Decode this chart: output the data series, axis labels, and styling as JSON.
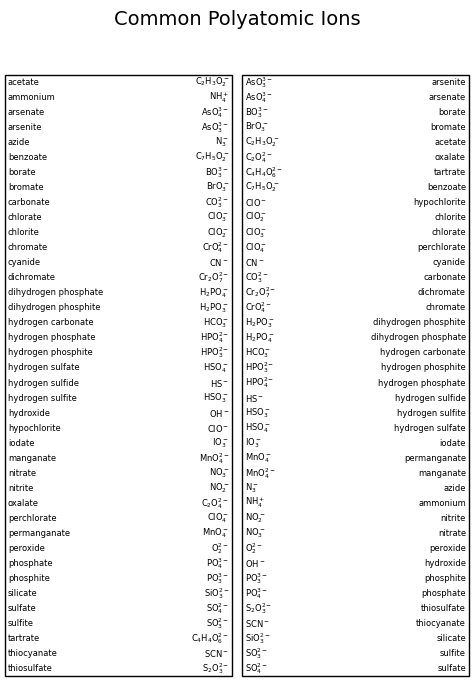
{
  "title": "Common Polyatomic Ions",
  "left_column": [
    [
      "acetate",
      "$\\mathregular{C_2H_3O_2^-}$"
    ],
    [
      "ammonium",
      "$\\mathregular{NH_4^+}$"
    ],
    [
      "arsenate",
      "$\\mathregular{AsO_4^{3-}}$"
    ],
    [
      "arsenite",
      "$\\mathregular{AsO_3^{3-}}$"
    ],
    [
      "azide",
      "$\\mathregular{N_3^-}$"
    ],
    [
      "benzoate",
      "$\\mathregular{C_7H_5O_2^-}$"
    ],
    [
      "borate",
      "$\\mathregular{BO_3^{3-}}$"
    ],
    [
      "bromate",
      "$\\mathregular{BrO_3^-}$"
    ],
    [
      "carbonate",
      "$\\mathregular{CO_3^{2-}}$"
    ],
    [
      "chlorate",
      "$\\mathregular{ClO_3^-}$"
    ],
    [
      "chlorite",
      "$\\mathregular{ClO_2^-}$"
    ],
    [
      "chromate",
      "$\\mathregular{CrO_4^{2-}}$"
    ],
    [
      "cyanide",
      "$\\mathregular{CN^-}$"
    ],
    [
      "dichromate",
      "$\\mathregular{Cr_2O_7^{2-}}$"
    ],
    [
      "dihydrogen phosphate",
      "$\\mathregular{H_2PO_4^-}$"
    ],
    [
      "dihydrogen phosphite",
      "$\\mathregular{H_2PO_3^-}$"
    ],
    [
      "hydrogen carbonate",
      "$\\mathregular{HCO_3^-}$"
    ],
    [
      "hydrogen phosphate",
      "$\\mathregular{HPO_4^{2-}}$"
    ],
    [
      "hydrogen phosphite",
      "$\\mathregular{HPO_3^{2-}}$"
    ],
    [
      "hydrogen sulfate",
      "$\\mathregular{HSO_4^-}$"
    ],
    [
      "hydrogen sulfide",
      "$\\mathregular{HS^-}$"
    ],
    [
      "hydrogen sulfite",
      "$\\mathregular{HSO_3^-}$"
    ],
    [
      "hydroxide",
      "$\\mathregular{OH^-}$"
    ],
    [
      "hypochlorite",
      "$\\mathregular{ClO^-}$"
    ],
    [
      "iodate",
      "$\\mathregular{IO_3^-}$"
    ],
    [
      "manganate",
      "$\\mathregular{MnO_4^{2-}}$"
    ],
    [
      "nitrate",
      "$\\mathregular{NO_3^-}$"
    ],
    [
      "nitrite",
      "$\\mathregular{NO_2^-}$"
    ],
    [
      "oxalate",
      "$\\mathregular{C_2O_4^{2-}}$"
    ],
    [
      "perchlorate",
      "$\\mathregular{ClO_4^-}$"
    ],
    [
      "permanganate",
      "$\\mathregular{MnO_4^-}$"
    ],
    [
      "peroxide",
      "$\\mathregular{O_2^{2-}}$"
    ],
    [
      "phosphate",
      "$\\mathregular{PO_4^{3-}}$"
    ],
    [
      "phosphite",
      "$\\mathregular{PO_3^{3-}}$"
    ],
    [
      "silicate",
      "$\\mathregular{SiO_3^{2-}}$"
    ],
    [
      "sulfate",
      "$\\mathregular{SO_4^{2-}}$"
    ],
    [
      "sulfite",
      "$\\mathregular{SO_3^{2-}}$"
    ],
    [
      "tartrate",
      "$\\mathregular{C_4H_4O_6^{2-}}$"
    ],
    [
      "thiocyanate",
      "$\\mathregular{SCN^-}$"
    ],
    [
      "thiosulfate",
      "$\\mathregular{S_2O_3^{2-}}$"
    ]
  ],
  "right_column": [
    [
      "$\\mathregular{AsO_3^{3-}}$",
      "arsenite"
    ],
    [
      "$\\mathregular{AsO_4^{3-}}$",
      "arsenate"
    ],
    [
      "$\\mathregular{BO_3^{3-}}$",
      "borate"
    ],
    [
      "$\\mathregular{BrO_3^-}$",
      "bromate"
    ],
    [
      "$\\mathregular{C_2H_3O_2^-}$",
      "acetate"
    ],
    [
      "$\\mathregular{C_2O_4^{2-}}$",
      "oxalate"
    ],
    [
      "$\\mathregular{C_4H_4O_6^{2-}}$",
      "tartrate"
    ],
    [
      "$\\mathregular{C_7H_5O_2^-}$",
      "benzoate"
    ],
    [
      "$\\mathregular{ClO^-}$",
      "hypochlorite"
    ],
    [
      "$\\mathregular{ClO_2^-}$",
      "chlorite"
    ],
    [
      "$\\mathregular{ClO_3^-}$",
      "chlorate"
    ],
    [
      "$\\mathregular{ClO_4^-}$",
      "perchlorate"
    ],
    [
      "$\\mathregular{CN^-}$",
      "cyanide"
    ],
    [
      "$\\mathregular{CO_3^{2-}}$",
      "carbonate"
    ],
    [
      "$\\mathregular{Cr_2O_7^{2-}}$",
      "dichromate"
    ],
    [
      "$\\mathregular{CrO_4^{2-}}$",
      "chromate"
    ],
    [
      "$\\mathregular{H_2PO_3^-}$",
      "dihydrogen phosphite"
    ],
    [
      "$\\mathregular{H_2PO_4^-}$",
      "dihydrogen phosphate"
    ],
    [
      "$\\mathregular{HCO_3^-}$",
      "hydrogen carbonate"
    ],
    [
      "$\\mathregular{HPO_3^{2-}}$",
      "hydrogen phosphite"
    ],
    [
      "$\\mathregular{HPO_4^{2-}}$",
      "hydrogen phosphate"
    ],
    [
      "$\\mathregular{HS^-}$",
      "hydrogen sulfide"
    ],
    [
      "$\\mathregular{HSO_3^-}$",
      "hydrogen sulfite"
    ],
    [
      "$\\mathregular{HSO_4^-}$",
      "hydrogen sulfate"
    ],
    [
      "$\\mathregular{IO_3^-}$",
      "iodate"
    ],
    [
      "$\\mathregular{MnO_4^-}$",
      "permanganate"
    ],
    [
      "$\\mathregular{MnO_4^{2-}}$",
      "manganate"
    ],
    [
      "$\\mathregular{N_3^-}$",
      "azide"
    ],
    [
      "$\\mathregular{NH_4^+}$",
      "ammonium"
    ],
    [
      "$\\mathregular{NO_2^-}$",
      "nitrite"
    ],
    [
      "$\\mathregular{NO_3^-}$",
      "nitrate"
    ],
    [
      "$\\mathregular{O_2^{2-}}$",
      "peroxide"
    ],
    [
      "$\\mathregular{OH^-}$",
      "hydroxide"
    ],
    [
      "$\\mathregular{PO_3^{3-}}$",
      "phosphite"
    ],
    [
      "$\\mathregular{PO_4^{3-}}$",
      "phosphate"
    ],
    [
      "$\\mathregular{S_2O_3^{2-}}$",
      "thiosulfate"
    ],
    [
      "$\\mathregular{SCN^-}$",
      "thiocyanate"
    ],
    [
      "$\\mathregular{SiO_3^{2-}}$",
      "silicate"
    ],
    [
      "$\\mathregular{SO_3^{2-}}$",
      "sulfite"
    ],
    [
      "$\\mathregular{SO_4^{2-}}$",
      "sulfate"
    ]
  ],
  "bg_color": "#ffffff",
  "text_color": "#000000",
  "border_color": "#000000",
  "title_fontsize": 14,
  "body_fontsize": 6.0
}
